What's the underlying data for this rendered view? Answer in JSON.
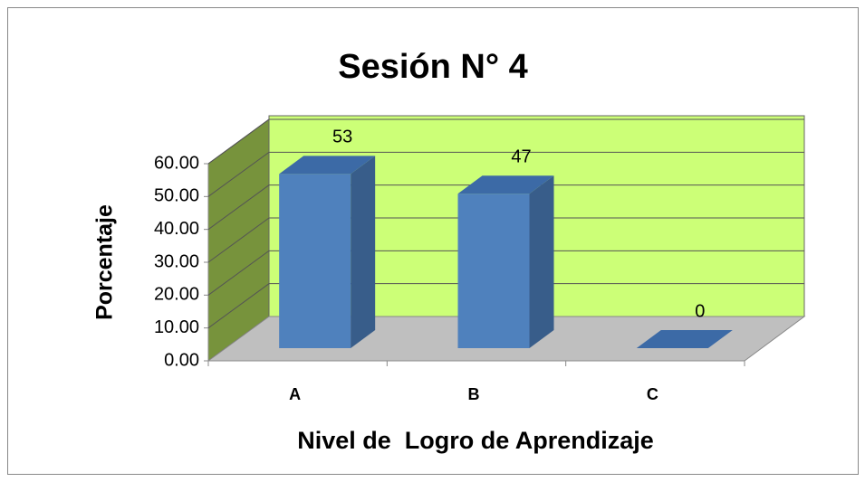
{
  "chart_data": {
    "type": "bar3d",
    "title": "Sesión N° 4",
    "categories": [
      "A",
      "B",
      "C"
    ],
    "values": [
      53,
      47,
      0
    ],
    "ylim": [
      0,
      60
    ],
    "yticks": [
      {
        "value": 0,
        "label": "0.00"
      },
      {
        "value": 10,
        "label": "10.00"
      },
      {
        "value": 20,
        "label": "20.00"
      },
      {
        "value": 30,
        "label": "30.00"
      },
      {
        "value": 40,
        "label": "40.00"
      },
      {
        "value": 50,
        "label": "50.00"
      },
      {
        "value": 60,
        "label": "60.00"
      }
    ],
    "y_label": "Porcentaje",
    "x_label": "Nivel de  Logro de Aprendizaje",
    "color": "#4f81bd",
    "grid": true
  }
}
